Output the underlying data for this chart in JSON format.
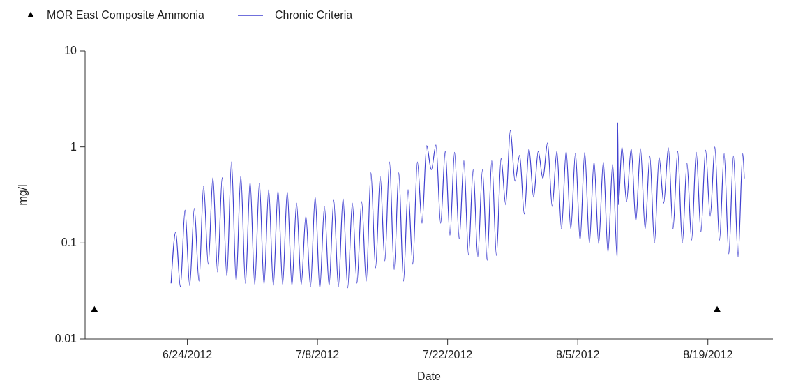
{
  "chart_data": {
    "type": "line",
    "xlabel": "Date",
    "ylabel": "mg/l",
    "log": "y",
    "legend": "top left",
    "xlim": [
      "2012-06-13",
      "2012-08-26"
    ],
    "ylim": [
      0.01,
      10
    ],
    "xticks": [
      {
        "value": "2012-06-24",
        "label": "6/24/2012"
      },
      {
        "value": "2012-07-08",
        "label": "7/8/2012"
      },
      {
        "value": "2012-07-22",
        "label": "7/22/2012"
      },
      {
        "value": "2012-08-05",
        "label": "8/5/2012"
      },
      {
        "value": "2012-08-19",
        "label": "8/19/2012"
      }
    ],
    "yticks": [
      0.01,
      0.1,
      1,
      10
    ],
    "series": [
      {
        "name": "MOR East Composite Ammonia",
        "type": "scatter",
        "marker": "triangle",
        "color": "#000000",
        "x": [
          "2012-06-14",
          "2012-08-20"
        ],
        "values": [
          0.02,
          0.02
        ]
      },
      {
        "name": "Chronic Criteria",
        "color": "#4040d0",
        "x": [
          "2012-06-22T06:00",
          "2012-06-22T18:00",
          "2012-06-23T06:00",
          "2012-06-23T18:00",
          "2012-06-24T06:00",
          "2012-06-24T18:00",
          "2012-06-25T06:00",
          "2012-06-25T18:00",
          "2012-06-26T06:00",
          "2012-06-26T18:00",
          "2012-06-27T06:00",
          "2012-06-27T18:00",
          "2012-06-28T06:00",
          "2012-06-28T18:00",
          "2012-06-29T06:00",
          "2012-06-29T18:00",
          "2012-06-30T06:00",
          "2012-06-30T18:00",
          "2012-07-01T06:00",
          "2012-07-01T18:00",
          "2012-07-02T06:00",
          "2012-07-02T18:00",
          "2012-07-03T06:00",
          "2012-07-03T18:00",
          "2012-07-04T06:00",
          "2012-07-04T18:00",
          "2012-07-05T06:00",
          "2012-07-05T18:00",
          "2012-07-06T06:00",
          "2012-07-06T18:00",
          "2012-07-07T06:00",
          "2012-07-07T18:00",
          "2012-07-08T06:00",
          "2012-07-08T18:00",
          "2012-07-09T06:00",
          "2012-07-09T18:00",
          "2012-07-10T06:00",
          "2012-07-10T18:00",
          "2012-07-11T06:00",
          "2012-07-11T18:00",
          "2012-07-12T06:00",
          "2012-07-12T18:00",
          "2012-07-13T06:00",
          "2012-07-13T18:00",
          "2012-07-14T06:00",
          "2012-07-14T18:00",
          "2012-07-15T06:00",
          "2012-07-15T18:00",
          "2012-07-16T06:00",
          "2012-07-16T18:00",
          "2012-07-17T06:00",
          "2012-07-17T18:00",
          "2012-07-18T06:00",
          "2012-07-18T18:00",
          "2012-07-19T06:00",
          "2012-07-19T18:00",
          "2012-07-20T06:00",
          "2012-07-20T18:00",
          "2012-07-21T06:00",
          "2012-07-21T18:00",
          "2012-07-22T06:00",
          "2012-07-22T18:00",
          "2012-07-23T06:00",
          "2012-07-23T18:00",
          "2012-07-24T06:00",
          "2012-07-24T18:00",
          "2012-07-25T06:00",
          "2012-07-25T18:00",
          "2012-07-26T06:00",
          "2012-07-26T18:00",
          "2012-07-27T06:00",
          "2012-07-27T18:00",
          "2012-07-28T06:00",
          "2012-07-28T18:00",
          "2012-07-29T06:00",
          "2012-07-29T18:00",
          "2012-07-30T06:00",
          "2012-07-30T18:00",
          "2012-07-31T06:00",
          "2012-07-31T18:00",
          "2012-08-01T06:00",
          "2012-08-01T18:00",
          "2012-08-02T06:00",
          "2012-08-02T18:00",
          "2012-08-03T06:00",
          "2012-08-03T18:00",
          "2012-08-04T06:00",
          "2012-08-04T18:00",
          "2012-08-05T06:00",
          "2012-08-05T18:00",
          "2012-08-06T06:00",
          "2012-08-06T18:00",
          "2012-08-07T06:00",
          "2012-08-07T18:00",
          "2012-08-08T06:00",
          "2012-08-08T18:00",
          "2012-08-09T06:00",
          "2012-08-09T07:00",
          "2012-08-09T09:00",
          "2012-08-09T18:00",
          "2012-08-10T06:00",
          "2012-08-10T18:00",
          "2012-08-11T06:00",
          "2012-08-11T18:00",
          "2012-08-12T06:00",
          "2012-08-12T18:00",
          "2012-08-13T06:00",
          "2012-08-13T18:00",
          "2012-08-14T06:00",
          "2012-08-14T18:00",
          "2012-08-15T06:00",
          "2012-08-15T18:00",
          "2012-08-16T06:00",
          "2012-08-16T18:00",
          "2012-08-17T06:00",
          "2012-08-17T18:00",
          "2012-08-18T06:00",
          "2012-08-18T18:00",
          "2012-08-19T06:00",
          "2012-08-19T18:00",
          "2012-08-20T06:00",
          "2012-08-20T18:00",
          "2012-08-21T06:00",
          "2012-08-21T18:00",
          "2012-08-22T06:00",
          "2012-08-22T18:00",
          "2012-08-22T22:00"
        ],
        "values": [
          0.038,
          0.13,
          0.035,
          0.22,
          0.036,
          0.23,
          0.04,
          0.39,
          0.06,
          0.48,
          0.05,
          0.48,
          0.045,
          0.7,
          0.04,
          0.5,
          0.038,
          0.43,
          0.037,
          0.42,
          0.037,
          0.36,
          0.036,
          0.35,
          0.037,
          0.34,
          0.036,
          0.26,
          0.037,
          0.19,
          0.035,
          0.3,
          0.034,
          0.24,
          0.036,
          0.28,
          0.035,
          0.29,
          0.034,
          0.26,
          0.038,
          0.27,
          0.04,
          0.54,
          0.055,
          0.49,
          0.065,
          0.7,
          0.053,
          0.54,
          0.04,
          0.36,
          0.06,
          0.7,
          0.16,
          1.03,
          0.58,
          1.05,
          0.16,
          0.9,
          0.12,
          0.88,
          0.11,
          0.72,
          0.075,
          0.58,
          0.072,
          0.58,
          0.066,
          0.72,
          0.074,
          0.76,
          0.25,
          1.49,
          0.44,
          0.82,
          0.2,
          0.96,
          0.3,
          0.9,
          0.47,
          1.1,
          0.24,
          0.9,
          0.14,
          0.9,
          0.14,
          0.86,
          0.107,
          0.88,
          0.1,
          0.7,
          0.098,
          0.7,
          0.08,
          0.66,
          0.069,
          1.8,
          0.25,
          1.0,
          0.27,
          0.96,
          0.17,
          0.96,
          0.14,
          0.81,
          0.1,
          0.78,
          0.26,
          0.98,
          0.14,
          0.9,
          0.1,
          0.68,
          0.107,
          0.88,
          0.13,
          0.93,
          0.19,
          1.0,
          0.107,
          0.85,
          0.077,
          0.81,
          0.072,
          0.85,
          0.47
        ]
      }
    ]
  }
}
